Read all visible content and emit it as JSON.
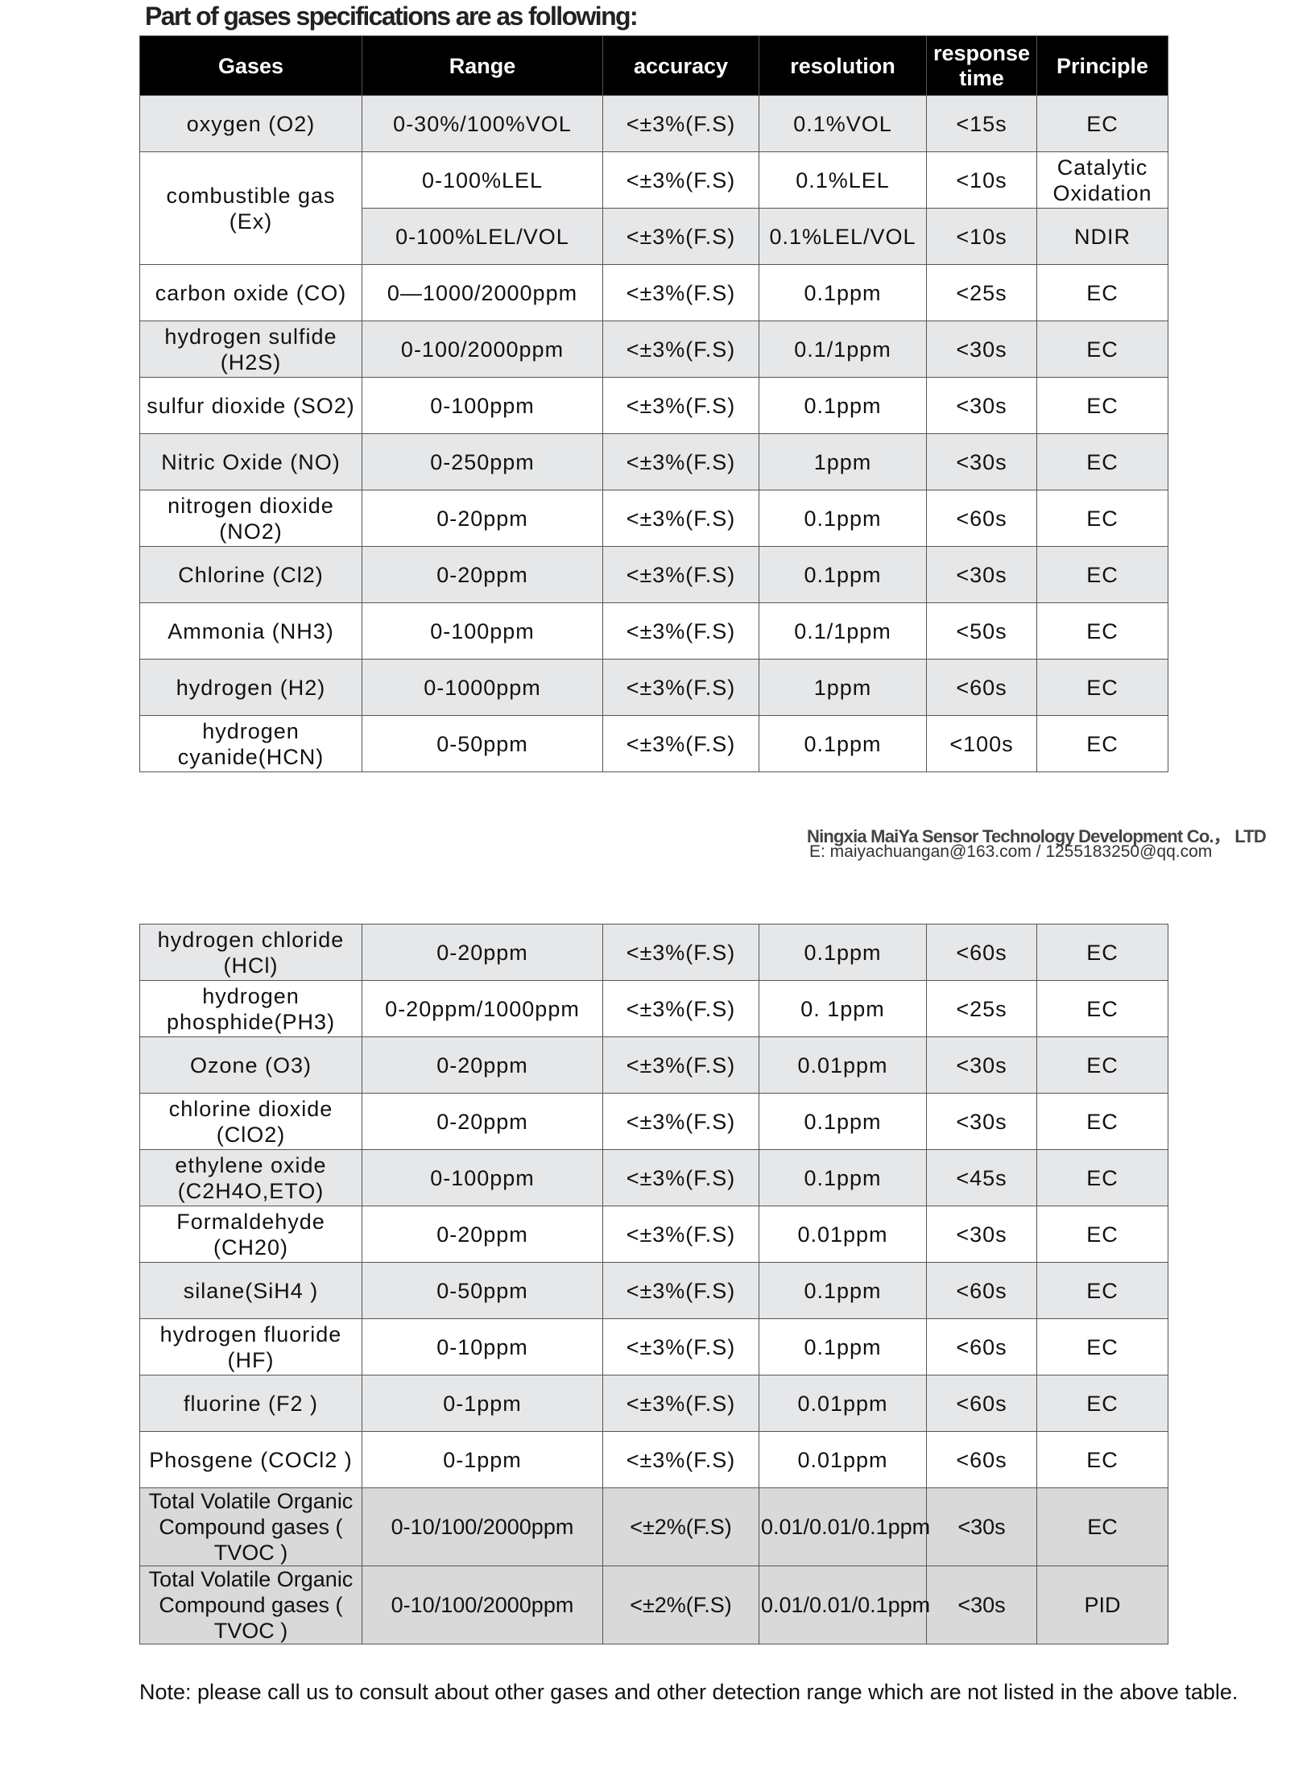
{
  "title": "Part of gases specifications are as following:",
  "headers": [
    "Gases",
    "Range",
    "accuracy",
    "resolution",
    "response time",
    "Principle"
  ],
  "table1": [
    {
      "shade": "g",
      "cells": [
        "oxygen (O2)",
        "0-30%/100%VOL",
        "<±3%(F.S)",
        "0.1%VOL",
        "<15s",
        "EC"
      ]
    },
    {
      "shade": "w",
      "gas_rowspan": 2,
      "cells": [
        "combustible gas (Ex)",
        "0-100%LEL",
        "<±3%(F.S)",
        "0.1%LEL",
        "<10s",
        "Catalytic Oxidation"
      ]
    },
    {
      "shade": "g",
      "skip_gas": true,
      "cells": [
        "0-100%LEL/VOL",
        "<±3%(F.S)",
        "0.1%LEL/VOL",
        "<10s",
        "NDIR"
      ]
    },
    {
      "shade": "w",
      "cells": [
        "carbon oxide (CO)",
        "0—1000/2000ppm",
        "<±3%(F.S)",
        "0.1ppm",
        "<25s",
        "EC"
      ]
    },
    {
      "shade": "g",
      "cells": [
        "hydrogen sulfide (H2S)",
        "0-100/2000ppm",
        "<±3%(F.S)",
        "0.1/1ppm",
        "<30s",
        "EC"
      ]
    },
    {
      "shade": "w",
      "cells": [
        "sulfur dioxide (SO2)",
        "0-100ppm",
        "<±3%(F.S)",
        "0.1ppm",
        "<30s",
        "EC"
      ]
    },
    {
      "shade": "g",
      "cells": [
        "Nitric Oxide (NO)",
        "0-250ppm",
        "<±3%(F.S)",
        "1ppm",
        "<30s",
        "EC"
      ]
    },
    {
      "shade": "w",
      "cells": [
        "nitrogen dioxide (NO2)",
        "0-20ppm",
        "<±3%(F.S)",
        "0.1ppm",
        "<60s",
        "EC"
      ]
    },
    {
      "shade": "g",
      "cells": [
        "Chlorine (Cl2)",
        "0-20ppm",
        "<±3%(F.S)",
        "0.1ppm",
        "<30s",
        "EC"
      ]
    },
    {
      "shade": "w",
      "cells": [
        "Ammonia (NH3)",
        "0-100ppm",
        "<±3%(F.S)",
        "0.1/1ppm",
        "<50s",
        "EC"
      ]
    },
    {
      "shade": "g",
      "cells": [
        "hydrogen (H2)",
        "0-1000ppm",
        "<±3%(F.S)",
        "1ppm",
        "<60s",
        "EC"
      ]
    },
    {
      "shade": "w",
      "cells": [
        "hydrogen cyanide(HCN)",
        "0-50ppm",
        "<±3%(F.S)",
        "0.1ppm",
        "<100s",
        "EC"
      ]
    }
  ],
  "company": "Ningxia MaiYa Sensor Technology Development Co.， LTD",
  "email": "E:  maiyachuangan@163.com / 1255183250@qq.com",
  "table2": [
    {
      "shade": "g",
      "cells": [
        "hydrogen chloride (HCl)",
        "0-20ppm",
        "<±3%(F.S)",
        "0.1ppm",
        "<60s",
        "EC"
      ]
    },
    {
      "shade": "w",
      "cells": [
        "hydrogen phosphide(PH3)",
        "0-20ppm/1000ppm",
        "<±3%(F.S)",
        "0. 1ppm",
        "<25s",
        "EC"
      ]
    },
    {
      "shade": "g",
      "cells": [
        "Ozone (O3)",
        "0-20ppm",
        "<±3%(F.S)",
        "0.01ppm",
        "<30s",
        "EC"
      ]
    },
    {
      "shade": "w",
      "cells": [
        "chlorine dioxide (ClO2)",
        "0-20ppm",
        "<±3%(F.S)",
        "0.1ppm",
        "<30s",
        "EC"
      ]
    },
    {
      "shade": "g",
      "cells": [
        "ethylene oxide (C2H4O,ETO)",
        "0-100ppm",
        "<±3%(F.S)",
        "0.1ppm",
        "<45s",
        "EC"
      ]
    },
    {
      "shade": "w",
      "cells": [
        "Formaldehyde (CH20)",
        "0-20ppm",
        "<±3%(F.S)",
        "0.01ppm",
        "<30s",
        "EC"
      ]
    },
    {
      "shade": "g",
      "cells": [
        "silane(SiH4 )",
        "0-50ppm",
        "<±3%(F.S)",
        "0.1ppm",
        "<60s",
        "EC"
      ]
    },
    {
      "shade": "w",
      "cells": [
        "hydrogen fluoride (HF)",
        "0-10ppm",
        "<±3%(F.S)",
        "0.1ppm",
        "<60s",
        "EC"
      ]
    },
    {
      "shade": "g",
      "cells": [
        "fluorine (F2 )",
        "0-1ppm",
        "<±3%(F.S)",
        "0.01ppm",
        "<60s",
        "EC"
      ]
    },
    {
      "shade": "w",
      "cells": [
        "Phosgene (COCl2 )",
        "0-1ppm",
        "<±3%(F.S)",
        "0.01ppm",
        "<60s",
        "EC"
      ]
    },
    {
      "shade": "t",
      "cells": [
        "Total Volatile Organic Compound gases ( TVOC )",
        "0-10/100/2000ppm",
        "<±2%(F.S)",
        "0.01/0.01/0.1ppm",
        "<30s",
        "EC"
      ]
    },
    {
      "shade": "t",
      "cells": [
        "Total Volatile Organic Compound gases ( TVOC )",
        "0-10/100/2000ppm",
        "<±2%(F.S)",
        "0.01/0.01/0.1ppm",
        "<30s",
        "PID"
      ]
    }
  ],
  "note": "Note: please call us to consult about other gases and other detection range which are not listed in the above table."
}
